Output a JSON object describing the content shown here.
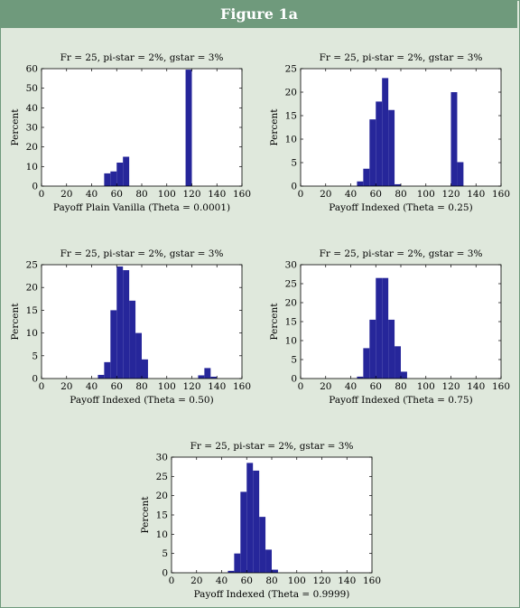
{
  "figure_title": "Figure 1a",
  "colors": {
    "bar": "#26269a",
    "banner": "#6f9a7c",
    "background": "#dfe8dc",
    "plot_bg": "#ffffff"
  },
  "chart_data": [
    {
      "type": "bar",
      "title": "Fr = 25, pi-star = 2%, gstar = 3%",
      "xlabel": "Payoff Plain Vanilla (Theta = 0.0001)",
      "ylabel": "Percent",
      "xlim": [
        0,
        160
      ],
      "ylim": [
        0,
        60
      ],
      "xticks": [
        0,
        20,
        40,
        60,
        80,
        100,
        120,
        140,
        160
      ],
      "yticks": [
        0,
        10,
        20,
        30,
        40,
        50,
        60
      ],
      "bin_width": 5,
      "x": [
        52.5,
        57.5,
        62.5,
        67.5,
        117.5
      ],
      "values": [
        6.5,
        7.5,
        12,
        15,
        59.5
      ]
    },
    {
      "type": "bar",
      "title": "Fr = 25, pi-star = 2%, gstar = 3%",
      "xlabel": "Payoff Indexed (Theta = 0.25)",
      "ylabel": "Percent",
      "xlim": [
        0,
        160
      ],
      "ylim": [
        0,
        25
      ],
      "xticks": [
        0,
        20,
        40,
        60,
        80,
        100,
        120,
        140,
        160
      ],
      "yticks": [
        0,
        5,
        10,
        15,
        20,
        25
      ],
      "bin_width": 5,
      "x": [
        47.5,
        52.5,
        57.5,
        62.5,
        67.5,
        72.5,
        77.5,
        122.5,
        127.5
      ],
      "values": [
        1,
        3.7,
        14.2,
        18,
        23,
        16.2,
        0.4,
        20,
        5.1
      ]
    },
    {
      "type": "bar",
      "title": "Fr = 25, pi-star = 2%, gstar = 3%",
      "xlabel": "Payoff Indexed (Theta = 0.50)",
      "ylabel": "Percent",
      "xlim": [
        0,
        160
      ],
      "ylim": [
        0,
        25
      ],
      "xticks": [
        0,
        20,
        40,
        60,
        80,
        100,
        120,
        140,
        160
      ],
      "yticks": [
        0,
        5,
        10,
        15,
        20,
        25
      ],
      "bin_width": 5,
      "x": [
        47.5,
        52.5,
        57.5,
        62.5,
        67.5,
        72.5,
        77.5,
        82.5,
        127.5,
        132.5,
        137.5
      ],
      "values": [
        0.8,
        3.6,
        15,
        24.6,
        23.8,
        17.1,
        10,
        4.2,
        0.7,
        2.3,
        0.4
      ]
    },
    {
      "type": "bar",
      "title": "Fr = 25, pi-star = 2%, gstar = 3%",
      "xlabel": "Payoff Indexed (Theta = 0.75)",
      "ylabel": "Percent",
      "xlim": [
        0,
        160
      ],
      "ylim": [
        0,
        30
      ],
      "xticks": [
        0,
        20,
        40,
        60,
        80,
        100,
        120,
        140,
        160
      ],
      "yticks": [
        0,
        5,
        10,
        15,
        20,
        25,
        30
      ],
      "bin_width": 5,
      "x": [
        47.5,
        52.5,
        57.5,
        62.5,
        67.5,
        72.5,
        77.5,
        82.5
      ],
      "values": [
        0.5,
        8,
        15.5,
        26.5,
        26.5,
        15.5,
        8.5,
        1.8
      ]
    },
    {
      "type": "bar",
      "title": "Fr = 25, pi-star = 2%, gstar = 3%",
      "xlabel": "Payoff Indexed (Theta = 0.9999)",
      "ylabel": "Percent",
      "xlim": [
        0,
        160
      ],
      "ylim": [
        0,
        30
      ],
      "xticks": [
        0,
        20,
        40,
        60,
        80,
        100,
        120,
        140,
        160
      ],
      "yticks": [
        0,
        5,
        10,
        15,
        20,
        25,
        30
      ],
      "bin_width": 5,
      "x": [
        47.5,
        52.5,
        57.5,
        62.5,
        67.5,
        72.5,
        77.5,
        82.5
      ],
      "values": [
        0.5,
        5,
        21,
        28.5,
        26.5,
        14.5,
        6,
        0.8
      ]
    }
  ]
}
